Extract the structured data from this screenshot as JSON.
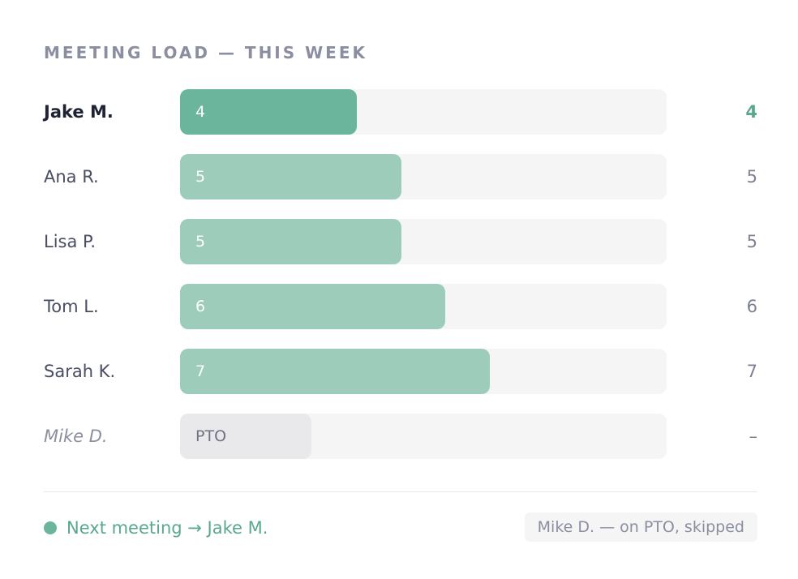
{
  "title": "MEETING LOAD — THIS WEEK",
  "chart_data": {
    "type": "bar",
    "orientation": "horizontal",
    "title": "MEETING LOAD — THIS WEEK",
    "scale_max": 11,
    "categories": [
      "Jake M.",
      "Ana R.",
      "Lisa P.",
      "Tom L.",
      "Sarah K.",
      "Mike D."
    ],
    "values": [
      4,
      5,
      5,
      6,
      7,
      null
    ],
    "bar_labels": [
      "4",
      "5",
      "5",
      "6",
      "7",
      "PTO"
    ],
    "value_labels": [
      "4",
      "5",
      "5",
      "6",
      "7",
      "–"
    ],
    "highlighted": "Jake M.",
    "away": "Mike D.",
    "away_bar_fraction": 0.27,
    "colors": {
      "highlight_bar": "#6cb59d",
      "bar": "#9dccbb",
      "away_bar": "#e9e9ec",
      "track": "#f5f5f5",
      "accent_text": "#5aa88c"
    }
  },
  "footer": {
    "next_icon": "status-dot-icon",
    "next_text": "Next meeting → Jake M.",
    "skipped_note": "Mike D. — on PTO, skipped"
  }
}
